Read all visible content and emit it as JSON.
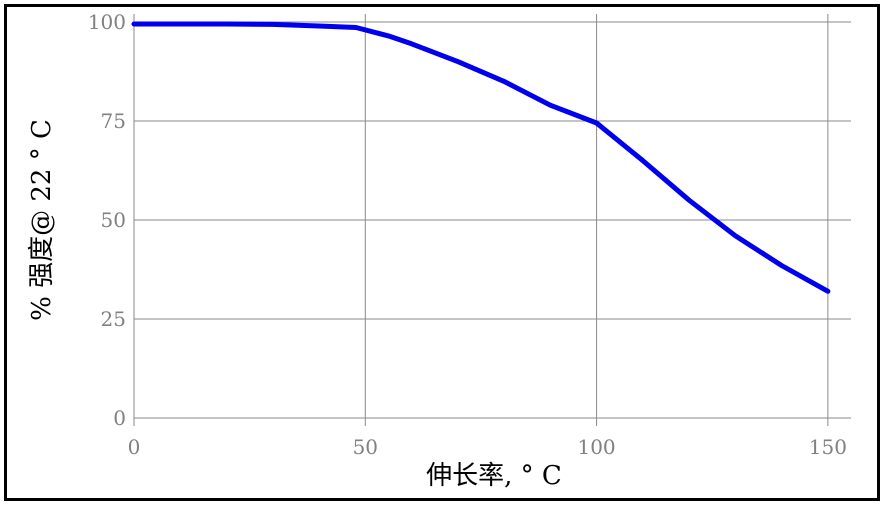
{
  "chart_data": {
    "type": "line",
    "xlabel": "伸长率, ° C",
    "ylabel": "% 强度@ 22 ° C",
    "xlim": [
      0,
      155
    ],
    "ylim": [
      0,
      100
    ],
    "xticks": [
      0,
      50,
      100,
      150
    ],
    "yticks": [
      0,
      25,
      50,
      75,
      100
    ],
    "grid": true,
    "series": [
      {
        "color": "#0000ee",
        "x": [
          0,
          10,
          20,
          30,
          40,
          48,
          55,
          60,
          70,
          80,
          90,
          100,
          110,
          120,
          130,
          140,
          150
        ],
        "y": [
          99.5,
          99.5,
          99.5,
          99.4,
          99.0,
          98.6,
          96.5,
          94.5,
          90.0,
          85.0,
          79.0,
          74.5,
          65.0,
          55.0,
          46.0,
          38.5,
          32.0
        ]
      }
    ]
  }
}
